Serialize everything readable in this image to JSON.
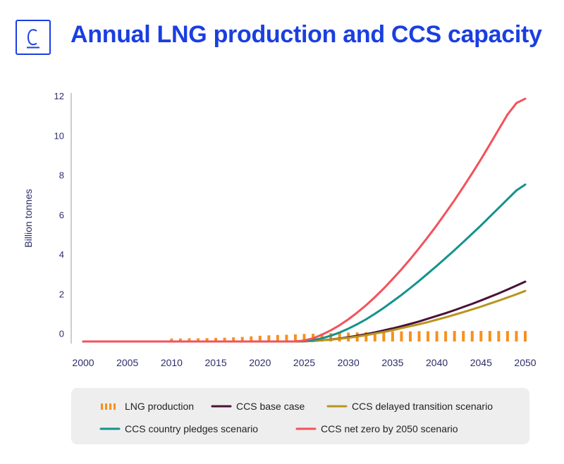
{
  "header": {
    "title": "Annual LNG production and CCS capacity",
    "logo_letter": "C",
    "accent": "#1a3fe0"
  },
  "chart_data": {
    "type": "line",
    "title": "Annual LNG production and CCS capacity",
    "xlabel": "",
    "ylabel": "Billion tonnes",
    "xlim": [
      2000,
      2050
    ],
    "ylim": [
      -0.4,
      12
    ],
    "x_ticks": [
      2000,
      2005,
      2010,
      2015,
      2020,
      2025,
      2030,
      2035,
      2040,
      2045,
      2050
    ],
    "y_ticks": [
      0,
      2,
      4,
      6,
      8,
      10,
      12
    ],
    "grid": false,
    "legend_position": "bottom",
    "x": [
      2010,
      2011,
      2012,
      2013,
      2014,
      2015,
      2016,
      2017,
      2018,
      2019,
      2020,
      2021,
      2022,
      2023,
      2024,
      2025,
      2026,
      2027,
      2028,
      2029,
      2030,
      2031,
      2032,
      2033,
      2034,
      2035,
      2036,
      2037,
      2038,
      2039,
      2040,
      2041,
      2042,
      2043,
      2044,
      2045,
      2046,
      2047,
      2048,
      2049,
      2050
    ],
    "series": [
      {
        "name": "LNG production",
        "kind": "bar",
        "color": "#f7901e",
        "baseline": -0.4,
        "values": [
          -0.25,
          -0.25,
          -0.24,
          -0.24,
          -0.23,
          -0.22,
          -0.21,
          -0.19,
          -0.17,
          -0.14,
          -0.11,
          -0.09,
          -0.07,
          -0.06,
          -0.04,
          -0.02,
          -0.01,
          0.0,
          0.02,
          0.03,
          0.05,
          0.06,
          0.07,
          0.08,
          0.09,
          0.1,
          0.11,
          0.11,
          0.12,
          0.12,
          0.12,
          0.12,
          0.13,
          0.13,
          0.13,
          0.13,
          0.13,
          0.13,
          0.13,
          0.13,
          0.13
        ]
      },
      {
        "name": "CCS base case",
        "kind": "line",
        "color": "#4a1236",
        "values": [
          -0.4,
          -0.4,
          -0.4,
          -0.4,
          -0.4,
          -0.4,
          -0.4,
          -0.4,
          -0.4,
          -0.4,
          -0.4,
          -0.4,
          -0.4,
          -0.4,
          -0.4,
          -0.39,
          -0.37,
          -0.34,
          -0.3,
          -0.25,
          -0.18,
          -0.11,
          -0.03,
          0.06,
          0.16,
          0.26,
          0.37,
          0.49,
          0.61,
          0.75,
          0.89,
          1.03,
          1.18,
          1.34,
          1.5,
          1.67,
          1.85,
          2.03,
          2.22,
          2.42,
          2.62
        ]
      },
      {
        "name": "CCS delayed transition scenario",
        "kind": "line",
        "color": "#b8941f",
        "values": [
          -0.4,
          -0.4,
          -0.4,
          -0.4,
          -0.4,
          -0.4,
          -0.4,
          -0.4,
          -0.4,
          -0.4,
          -0.4,
          -0.4,
          -0.4,
          -0.4,
          -0.4,
          -0.39,
          -0.37,
          -0.34,
          -0.31,
          -0.26,
          -0.21,
          -0.15,
          -0.08,
          0.0,
          0.08,
          0.17,
          0.27,
          0.37,
          0.47,
          0.58,
          0.7,
          0.82,
          0.95,
          1.08,
          1.22,
          1.36,
          1.51,
          1.66,
          1.82,
          1.98,
          2.15
        ]
      },
      {
        "name": "CCS country pledges scenario",
        "kind": "line",
        "color": "#14928c",
        "values": [
          -0.4,
          -0.4,
          -0.4,
          -0.4,
          -0.4,
          -0.4,
          -0.4,
          -0.4,
          -0.4,
          -0.4,
          -0.4,
          -0.4,
          -0.4,
          -0.4,
          -0.4,
          -0.38,
          -0.33,
          -0.24,
          -0.11,
          0.05,
          0.25,
          0.47,
          0.72,
          1.0,
          1.3,
          1.62,
          1.95,
          2.3,
          2.66,
          3.04,
          3.42,
          3.81,
          4.21,
          4.62,
          5.04,
          5.46,
          5.9,
          6.34,
          6.78,
          7.22,
          7.52
        ]
      },
      {
        "name": "CCS net zero by 2050 scenario",
        "kind": "line",
        "color": "#f2525c",
        "values": [
          -0.4,
          -0.4,
          -0.4,
          -0.4,
          -0.4,
          -0.4,
          -0.4,
          -0.4,
          -0.4,
          -0.4,
          -0.4,
          -0.4,
          -0.4,
          -0.4,
          -0.4,
          -0.35,
          -0.24,
          -0.06,
          0.16,
          0.42,
          0.72,
          1.06,
          1.43,
          1.84,
          2.28,
          2.75,
          3.24,
          3.76,
          4.31,
          4.88,
          5.47,
          6.09,
          6.73,
          7.4,
          8.09,
          8.8,
          9.54,
          10.3,
          11.05,
          11.63,
          11.85
        ]
      }
    ]
  }
}
